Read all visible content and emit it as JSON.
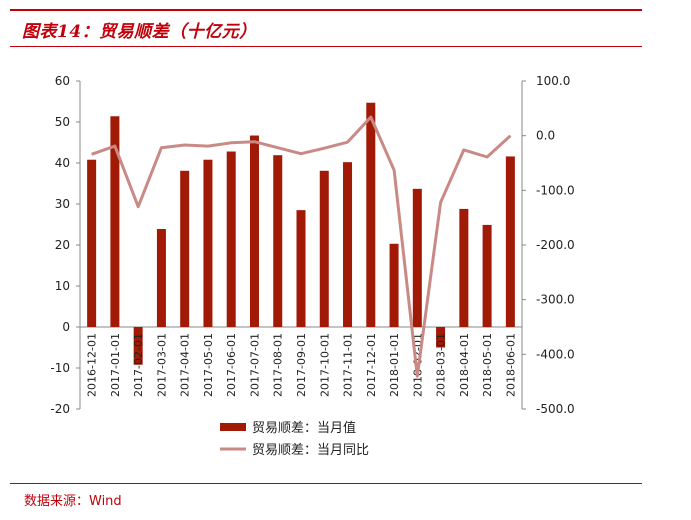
{
  "header": {
    "title": "图表14：贸易顺差（十亿元）"
  },
  "footer": {
    "source": "数据来源：Wind"
  },
  "colors": {
    "bar": "#a11a05",
    "line": "#c98a85",
    "accent": "#c0000b"
  },
  "chart_data": {
    "type": "bar",
    "categories": [
      "2016-12-01",
      "2017-01-01",
      "2017-02-01",
      "2017-03-01",
      "2017-04-01",
      "2017-05-01",
      "2017-06-01",
      "2017-07-01",
      "2017-08-01",
      "2017-09-01",
      "2017-10-01",
      "2017-11-01",
      "2017-12-01",
      "2018-01-01",
      "2018-02-01",
      "2018-03-01",
      "2018-04-01",
      "2018-05-01",
      "2018-06-01"
    ],
    "series": [
      {
        "name": "贸易顺差：当月值",
        "type": "bar",
        "axis": "left",
        "values": [
          40.8,
          51.4,
          -9.2,
          23.9,
          38.1,
          40.8,
          42.8,
          46.7,
          41.9,
          28.5,
          38.1,
          40.2,
          54.7,
          20.3,
          33.7,
          -5.0,
          28.8,
          24.9,
          41.6
        ]
      },
      {
        "name": "贸易顺差：当月同比",
        "type": "line",
        "axis": "right",
        "values": [
          -34,
          -19,
          -130,
          -22,
          -17,
          -19,
          -13,
          -11,
          -22,
          -33,
          -23,
          -12,
          34,
          -63,
          -440,
          -122,
          -26,
          -39,
          0
        ]
      }
    ],
    "y_left": {
      "ylim": [
        -20,
        60
      ],
      "ticks": [
        "-20",
        "-10",
        "0",
        "10",
        "20",
        "30",
        "40",
        "50",
        "60"
      ]
    },
    "y_right": {
      "ylim": [
        -500,
        100
      ],
      "ticks": [
        "-500.0",
        "-400.0",
        "-300.0",
        "-200.0",
        "-100.0",
        "0.0",
        "100.0"
      ]
    },
    "legend": "bottom-center",
    "grid": false
  }
}
